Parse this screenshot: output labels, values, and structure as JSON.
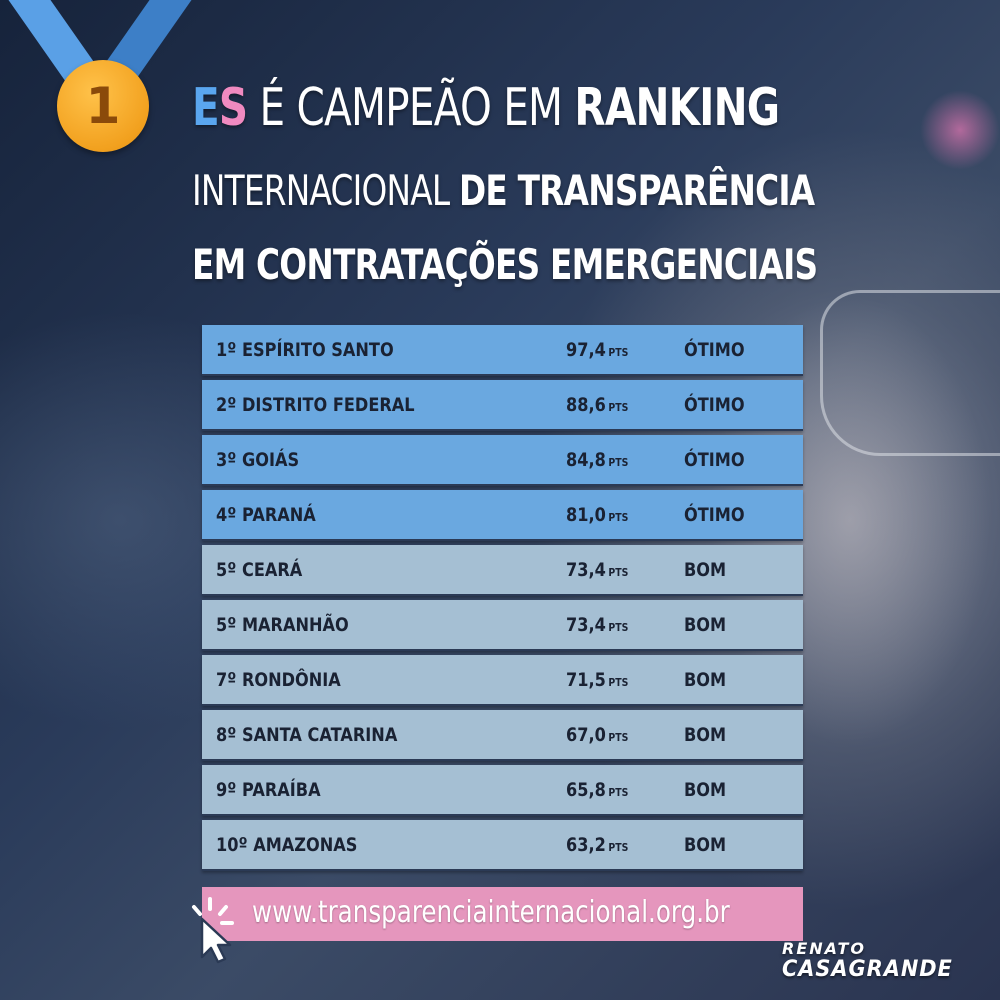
{
  "medal": {
    "number": "1"
  },
  "title": {
    "es_e": "E",
    "es_s": "S",
    "line1_a": " É CAMPEÃO EM ",
    "line1_b": "RANKING",
    "line2_a": "INTERNACIONAL ",
    "line2_b": "DE TRANSPARÊNCIA",
    "line3": "EM CONTRATAÇÕES EMERGENCIAIS"
  },
  "table": {
    "pts_label": "PTS",
    "rows": [
      {
        "name": "1º ESPÍRITO SANTO",
        "score": "97,4",
        "rating": "ÓTIMO",
        "tier": "otimo"
      },
      {
        "name": "2º DISTRITO FEDERAL",
        "score": "88,6",
        "rating": "ÓTIMO",
        "tier": "otimo"
      },
      {
        "name": "3º GOIÁS",
        "score": "84,8",
        "rating": "ÓTIMO",
        "tier": "otimo"
      },
      {
        "name": "4º PARANÁ",
        "score": "81,0",
        "rating": "ÓTIMO",
        "tier": "otimo"
      },
      {
        "name": "5º CEARÁ",
        "score": "73,4",
        "rating": "BOM",
        "tier": "bom"
      },
      {
        "name": "5º MARANHÃO",
        "score": "73,4",
        "rating": "BOM",
        "tier": "bom"
      },
      {
        "name": "7º RONDÔNIA",
        "score": "71,5",
        "rating": "BOM",
        "tier": "bom"
      },
      {
        "name": "8º SANTA CATARINA",
        "score": "67,0",
        "rating": "BOM",
        "tier": "bom"
      },
      {
        "name": "9º PARAÍBA",
        "score": "65,8",
        "rating": "BOM",
        "tier": "bom"
      },
      {
        "name": "10º AMAZONAS",
        "score": "63,2",
        "rating": "BOM",
        "tier": "bom"
      }
    ]
  },
  "footer": {
    "url": "www.transparenciainternacional.org.br"
  },
  "logo": {
    "line1": "RENATO",
    "line2": "CASAGRANDE"
  },
  "icons": {
    "medal": "medal-icon",
    "cursor": "cursor-click-icon"
  },
  "colors": {
    "otimo_row": "#6aa8e0",
    "bom_row": "#a5bfd3",
    "url_bar": "#e596bd",
    "es_blue": "#5aa6ef",
    "es_pink": "#f08ac0",
    "medal_gold": "#f2a11f"
  }
}
